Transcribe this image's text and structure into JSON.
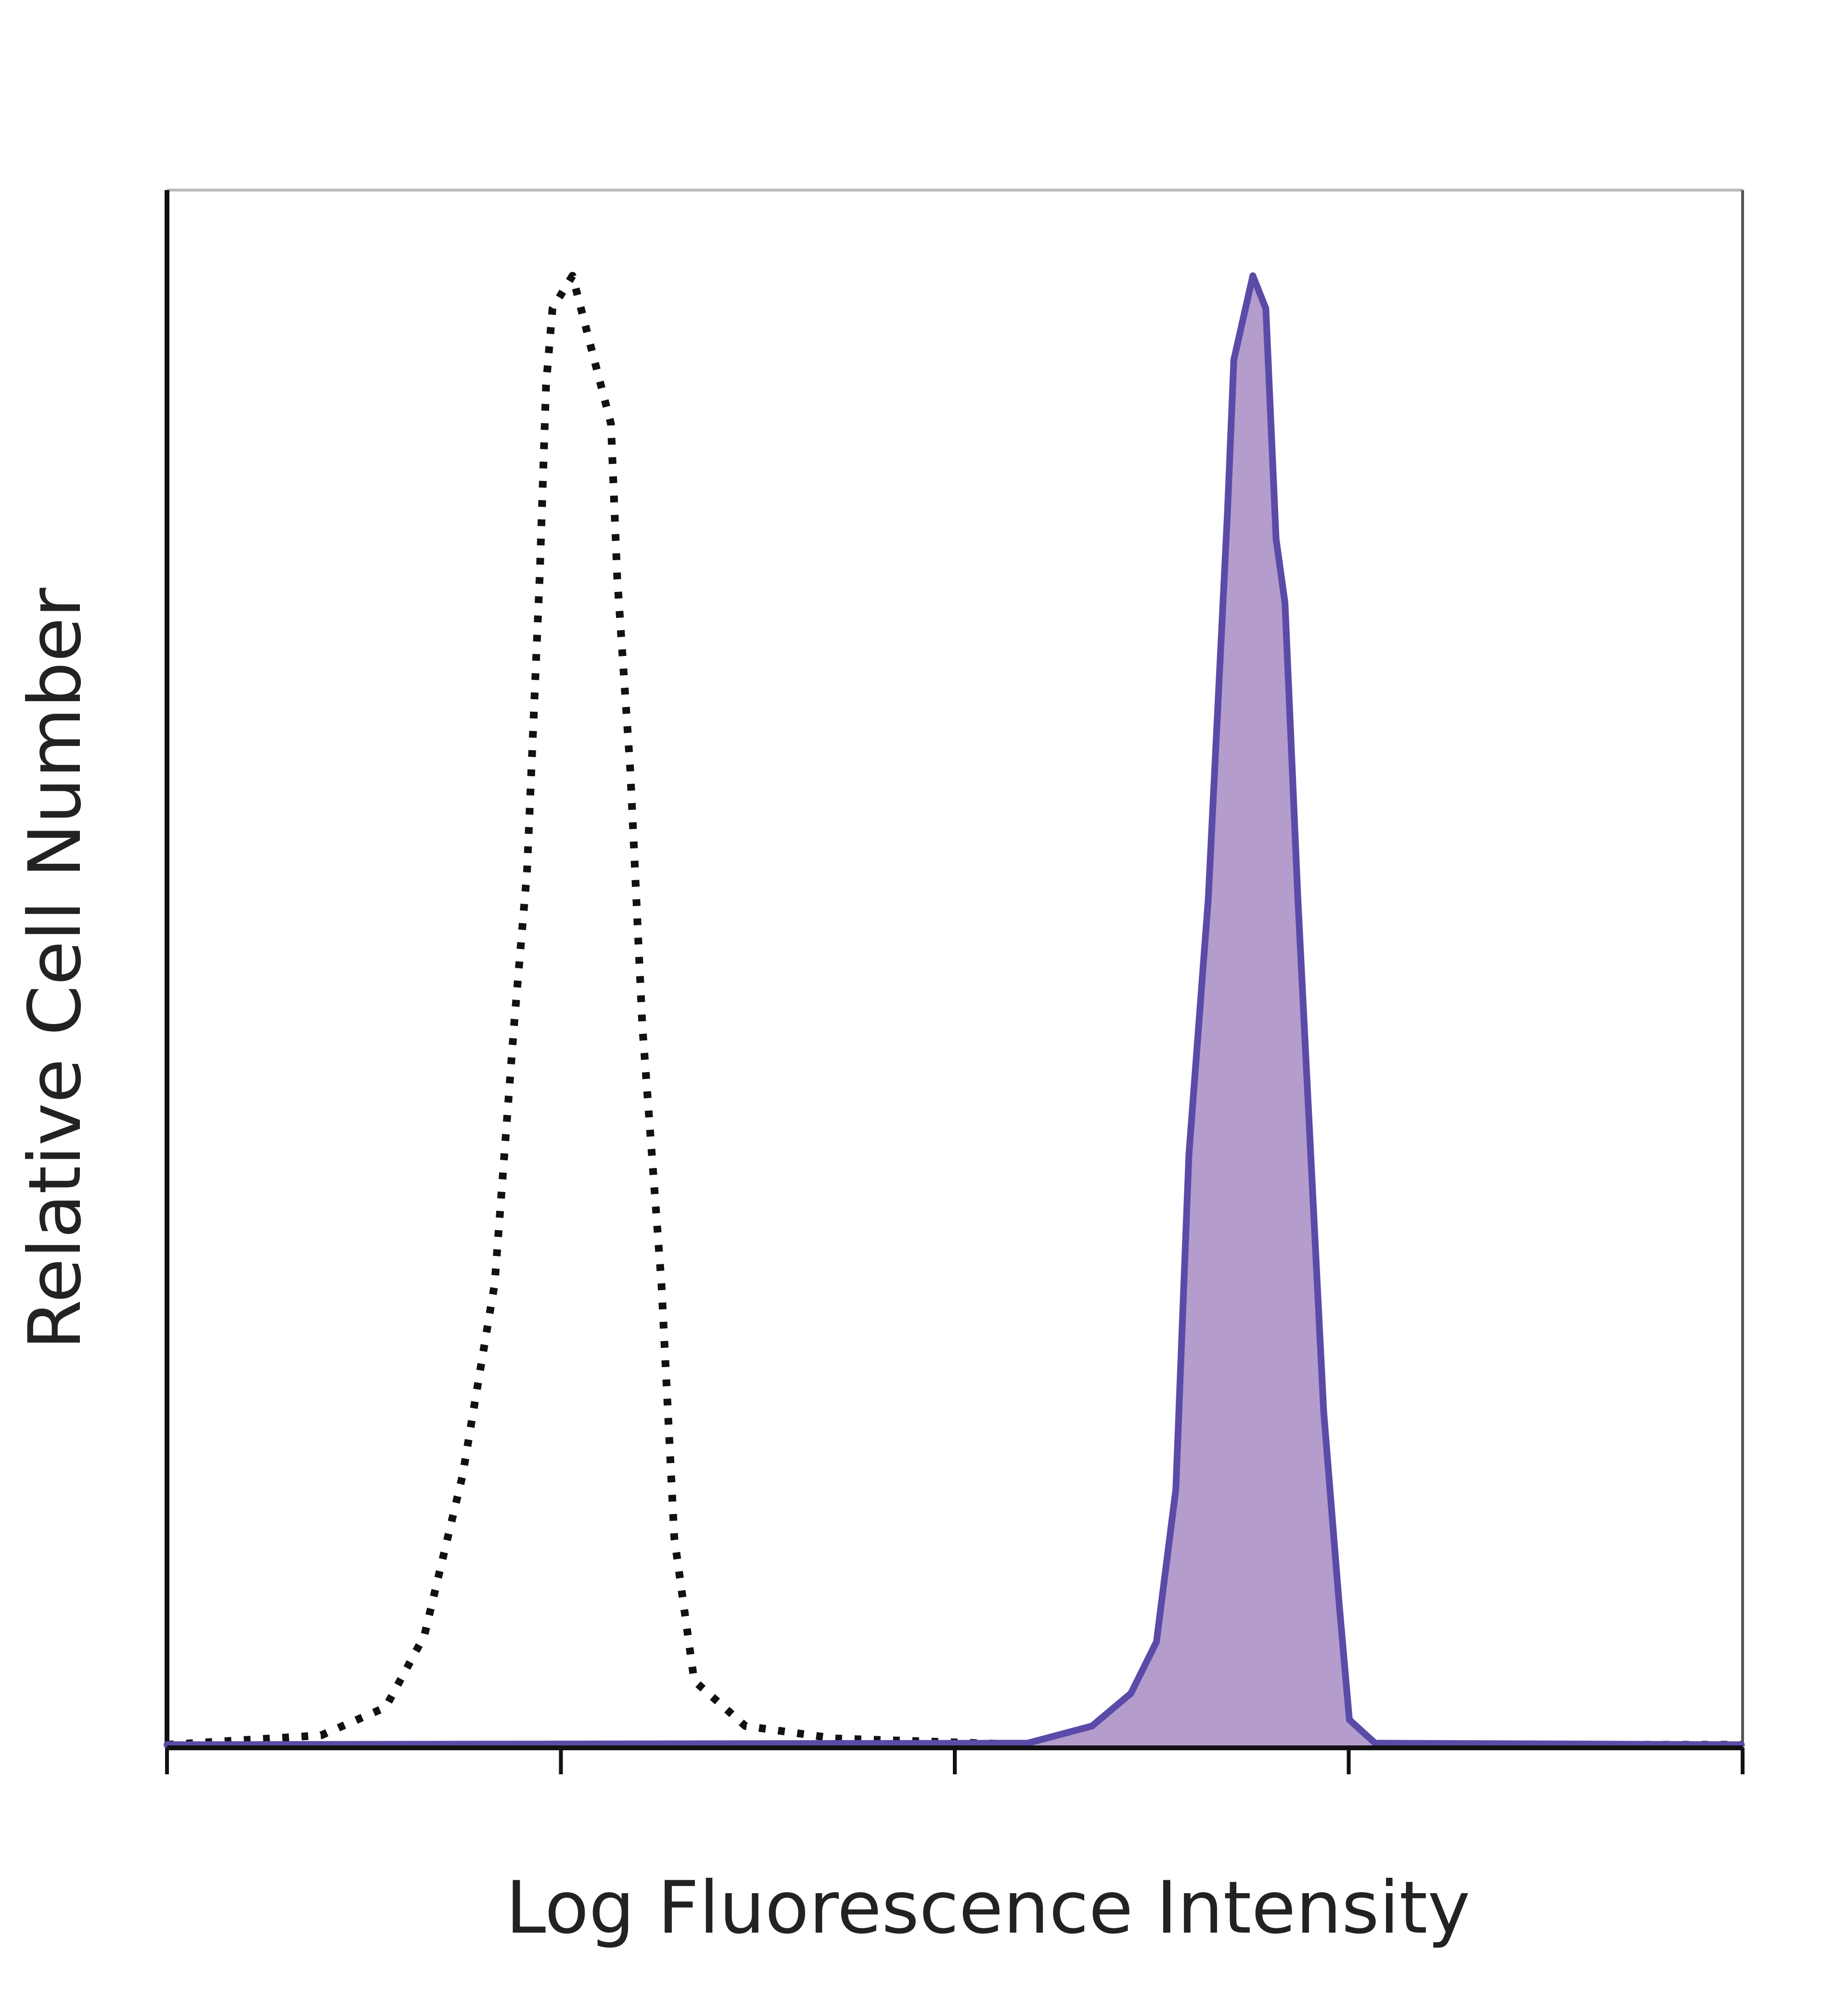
{
  "chart_data": {
    "type": "histogram-overlay",
    "x_label": "Log Fluorescence Intensity",
    "y_label": "Relative Cell Number",
    "xscale": "log",
    "xlim": [
      1,
      10000
    ],
    "xticks": [
      1,
      10,
      100,
      1000,
      10000
    ],
    "ylim": [
      0,
      100
    ],
    "series": [
      {
        "color": "#111111",
        "style": "dotted",
        "filled": false,
        "x": [
          1,
          2.46,
          3.59,
          4.5,
          5.63,
          6.79,
          7.6,
          8.2,
          8.83,
          9.17,
          9.52,
          10.7,
          11.9,
          13.4,
          13.9,
          15.0,
          16.1,
          18.0,
          19.4,
          21.8,
          29.4,
          49.7,
          153,
          9930
        ],
        "values": [
          0.2,
          0.8,
          2.6,
          7.2,
          17.5,
          29.8,
          46.3,
          56.2,
          75.1,
          87.5,
          92.4,
          94.5,
          90.0,
          85.0,
          75.1,
          62.8,
          46.3,
          29.8,
          13.5,
          4.3,
          1.4,
          0.6,
          0.2,
          0.2
        ]
      },
      {
        "color": "#5b4ba8",
        "fill_color": "#b49ccc",
        "style": "solid",
        "filled": true,
        "x": [
          1,
          153,
          223,
          280,
          325,
          364,
          393,
          440,
          492,
          511,
          571,
          616,
          654,
          689,
          743,
          801,
          864,
          946,
          1004,
          1167,
          9930
        ],
        "values": [
          0.2,
          0.3,
          1.4,
          3.5,
          6.8,
          16.6,
          38.1,
          54.5,
          79.2,
          89.1,
          94.5,
          92.4,
          77.6,
          73.5,
          54.5,
          38.1,
          21.6,
          9.2,
          1.8,
          0.3,
          0.2
        ]
      }
    ]
  }
}
